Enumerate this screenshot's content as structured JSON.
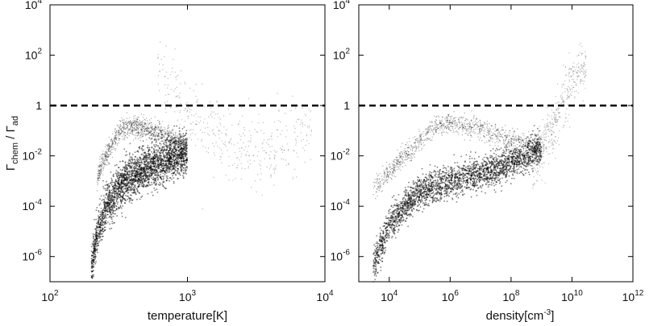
{
  "chart_data": [
    {
      "type": "scatter",
      "xscale": "log",
      "yscale": "log",
      "xlabel": "temperature[K]",
      "ylabel": "Γchem / Γad",
      "ylabel_parts": {
        "base": "Γ",
        "sub1": "chem",
        "sep": " / ",
        "base2": "Γ",
        "sub2": "ad"
      },
      "xlim": [
        100,
        10000
      ],
      "ylim": [
        1e-07,
        10000
      ],
      "xticks": [
        {
          "value": 100,
          "base": "10",
          "exp": "2"
        },
        {
          "value": 1000,
          "base": "10",
          "exp": "3"
        },
        {
          "value": 10000,
          "base": "10",
          "exp": "4"
        }
      ],
      "yticks": [
        {
          "value": 1e-06,
          "base": "10",
          "exp": "-6"
        },
        {
          "value": 0.0001,
          "base": "10",
          "exp": "-4"
        },
        {
          "value": 0.01,
          "base": "10",
          "exp": "-2"
        },
        {
          "value": 1,
          "base": "1",
          "exp": ""
        },
        {
          "value": 100,
          "base": "10",
          "exp": "2"
        },
        {
          "value": 10000,
          "base": "10",
          "exp": "4"
        }
      ],
      "reference_line": {
        "y": 1,
        "style": "dashed"
      },
      "point_cloud": [
        {
          "name": "",
          "x_range": [
            200,
            1000
          ],
          "curve": [
            [
              200,
              3e-07
            ],
            [
              220,
              8e-06
            ],
            [
              260,
              0.00012
            ],
            [
              350,
              0.0009
            ],
            [
              500,
              0.003
            ],
            [
              700,
              0.007
            ],
            [
              1000,
              0.012
            ]
          ],
          "spread": 1.2,
          "density": "dense"
        },
        {
          "name": "",
          "x_range": [
            220,
            1000
          ],
          "curve": [
            [
              220,
              0.0012
            ],
            [
              260,
              0.012
            ],
            [
              320,
              0.1
            ],
            [
              380,
              0.15
            ],
            [
              500,
              0.12
            ],
            [
              700,
              0.06
            ],
            [
              1000,
              0.02
            ]
          ],
          "spread": 0.6,
          "density": "medium"
        },
        {
          "name": "",
          "x_range": [
            600,
            8000
          ],
          "curve": [
            [
              600,
              30
            ],
            [
              800,
              5
            ],
            [
              1000,
              0.5
            ],
            [
              2000,
              0.03
            ],
            [
              4000,
              0.02
            ],
            [
              7000,
              0.08
            ]
          ],
          "spread": 2.0,
          "density": "sparse"
        }
      ],
      "grid": false
    },
    {
      "type": "scatter",
      "xscale": "log",
      "yscale": "log",
      "xlabel": "density[cm-3]",
      "xlabel_parts": {
        "text": "density[cm",
        "sup": "-3",
        "close": "]"
      },
      "xlim": [
        1000,
        1000000000000
      ],
      "ylim": [
        1e-07,
        10000
      ],
      "xticks": [
        {
          "value": 10000,
          "base": "10",
          "exp": "4"
        },
        {
          "value": 1000000,
          "base": "10",
          "exp": "6"
        },
        {
          "value": 100000000,
          "base": "10",
          "exp": "8"
        },
        {
          "value": 10000000000,
          "base": "10",
          "exp": "10"
        },
        {
          "value": 1000000000000,
          "base": "10",
          "exp": "12"
        }
      ],
      "yticks": [
        {
          "value": 1e-06,
          "base": "10",
          "exp": "-6"
        },
        {
          "value": 0.0001,
          "base": "10",
          "exp": "-4"
        },
        {
          "value": 0.01,
          "base": "10",
          "exp": "-2"
        },
        {
          "value": 1,
          "base": "1",
          "exp": ""
        },
        {
          "value": 100,
          "base": "10",
          "exp": "2"
        },
        {
          "value": 10000,
          "base": "10",
          "exp": "4"
        }
      ],
      "reference_line": {
        "y": 1,
        "style": "dashed"
      },
      "point_cloud": [
        {
          "name": "",
          "x_range": [
            3000,
            1000000000
          ],
          "curve": [
            [
              3000,
              4e-07
            ],
            [
              10000,
              2e-05
            ],
            [
              100000,
              0.0004
            ],
            [
              1000000,
              0.001
            ],
            [
              10000000,
              0.002
            ],
            [
              100000000,
              0.005
            ],
            [
              1000000000,
              0.02
            ]
          ],
          "spread": 0.9,
          "density": "dense"
        },
        {
          "name": "",
          "x_range": [
            3000,
            1000000000
          ],
          "curve": [
            [
              3000,
              0.0005
            ],
            [
              30000,
              0.01
            ],
            [
              300000,
              0.12
            ],
            [
              1000000,
              0.2
            ],
            [
              10000000,
              0.12
            ],
            [
              100000000,
              0.04
            ],
            [
              1000000000,
              0.02
            ]
          ],
          "spread": 0.6,
          "density": "medium"
        },
        {
          "name": "",
          "x_range": [
            500000000,
            30000000000
          ],
          "curve": [
            [
              500000000,
              0.004
            ],
            [
              2000000000,
              0.1
            ],
            [
              5000000000,
              1
            ],
            [
              10000000000,
              10
            ],
            [
              20000000000,
              30
            ]
          ],
          "spread": 1.4,
          "density": "sparse"
        }
      ],
      "grid": false
    }
  ]
}
